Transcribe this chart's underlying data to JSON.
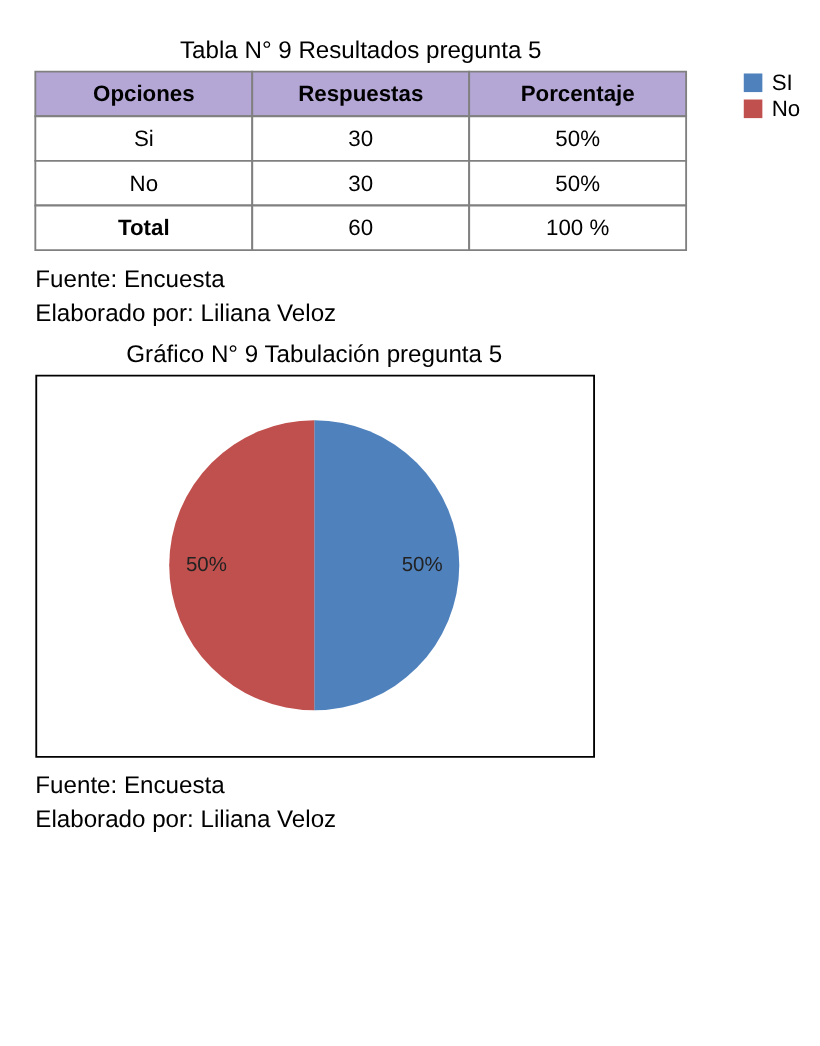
{
  "chart_data": [
    {
      "type": "other",
      "title": "Tabla  N° 9 Resultados pregunta 5",
      "categories": [
        "Opciones",
        "Respuestas",
        "Porcentaje"
      ],
      "cell_labels": [
        [
          "Si",
          "30",
          "50%"
        ],
        [
          "No",
          "30",
          "50%"
        ],
        [
          "Total",
          "60",
          "100 %"
        ]
      ],
      "color": "#b4a7d6",
      "annotations": [
        "Fuente: Encuesta",
        "Elaborado por: Liliana Veloz"
      ]
    },
    {
      "type": "pie",
      "title": "Gráfico N° 9 Tabulación  pregunta 5",
      "categories": [
        "SI",
        "No"
      ],
      "values": [
        50,
        50
      ],
      "colors": [
        "#4f81bd",
        "#c0504d"
      ],
      "value_labels": [
        "50%",
        "50%"
      ],
      "legend": "right",
      "annotations": [
        "Fuente: Encuesta",
        "Elaborado por: Liliana Veloz"
      ]
    }
  ]
}
